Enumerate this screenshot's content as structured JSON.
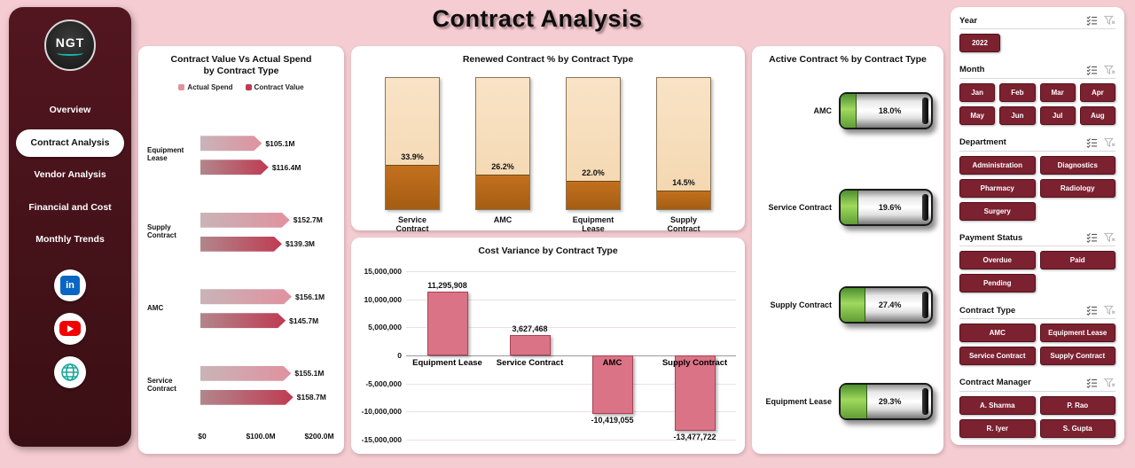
{
  "page": {
    "title": "Contract Analysis"
  },
  "sidebar": {
    "logo_text": "NGT",
    "items": [
      {
        "label": "Overview",
        "active": false
      },
      {
        "label": "Contract Analysis",
        "active": true
      },
      {
        "label": "Vendor Analysis",
        "active": false
      },
      {
        "label": "Financial and Cost",
        "active": false
      },
      {
        "label": "Monthly Trends",
        "active": false
      }
    ],
    "social": [
      "linkedin",
      "youtube",
      "website"
    ]
  },
  "colors": {
    "background": "#f5ccd2",
    "sidebar": "#47131a",
    "slicer_button": "#7b2130",
    "actual_spend": "#e0919f",
    "contract_value": "#bf3b52",
    "renewed_bar": "#f8ddb9",
    "renewed_fill": "#b2661c",
    "variance_bar": "#db7386",
    "gauge_fill": "#6fae3a"
  },
  "chart_data": [
    {
      "type": "bar",
      "orientation": "horizontal",
      "title": "Contract Value Vs Actual Spend by Contract Type",
      "categories": [
        "Equipment Lease",
        "Supply Contract",
        "AMC",
        "Service Contract"
      ],
      "series": [
        {
          "name": "Actual Spend",
          "values_millions": [
            105.1,
            152.7,
            156.1,
            155.1
          ],
          "labels": [
            "$105.1M",
            "$152.7M",
            "$156.1M",
            "$155.1M"
          ]
        },
        {
          "name": "Contract Value",
          "values_millions": [
            116.4,
            139.3,
            145.7,
            158.7
          ],
          "labels": [
            "$116.4M",
            "$139.3M",
            "$145.7M",
            "$158.7M"
          ]
        }
      ],
      "x_ticks": [
        "$0",
        "$100.0M",
        "$200.0M"
      ],
      "xlim_millions": [
        0,
        200
      ],
      "legend_position": "top"
    },
    {
      "type": "bar",
      "title": "Renewed Contract % by Contract Type",
      "categories": [
        "Service Contract",
        "AMC",
        "Equipment Lease",
        "Supply Contract"
      ],
      "values": [
        33.9,
        26.2,
        22.0,
        14.5
      ],
      "labels": [
        "33.9%",
        "26.2%",
        "22.0%",
        "14.5%"
      ],
      "ylim": [
        0,
        100
      ]
    },
    {
      "type": "bar",
      "title": "Cost Variance by Contract Type",
      "categories": [
        "Equipment Lease",
        "Service Contract",
        "AMC",
        "Supply Contract"
      ],
      "values": [
        11295908,
        3627468,
        -10419055,
        -13477722
      ],
      "labels": [
        "11,295,908",
        "3,627,468",
        "-10,419,055",
        "-13,477,722"
      ],
      "y_ticks": [
        "15,000,000",
        "10,000,000",
        "5,000,000",
        "0",
        "-5,000,000",
        "-10,000,000",
        "-15,000,000"
      ],
      "ylim": [
        -15000000,
        15000000
      ],
      "grid": true
    },
    {
      "type": "bar",
      "orientation": "horizontal",
      "title": "Active Contract % by Contract Type",
      "categories": [
        "AMC",
        "Service Contract",
        "Supply Contract",
        "Equipment Lease"
      ],
      "values": [
        18.0,
        19.6,
        27.4,
        29.3
      ],
      "labels": [
        "18.0%",
        "19.6%",
        "27.4%",
        "29.3%"
      ]
    }
  ],
  "slicer_icons": [
    "multiselect",
    "clear-filter"
  ],
  "filters": [
    {
      "label": "Year",
      "options": [
        "2022"
      ]
    },
    {
      "label": "Month",
      "options": [
        "Jan",
        "Feb",
        "Mar",
        "Apr",
        "May",
        "Jun",
        "Jul",
        "Aug"
      ]
    },
    {
      "label": "Department",
      "options": [
        "Administration",
        "Diagnostics",
        "Pharmacy",
        "Radiology",
        "Surgery"
      ]
    },
    {
      "label": "Payment Status",
      "options": [
        "Overdue",
        "Paid",
        "Pending"
      ]
    },
    {
      "label": "Contract Type",
      "options": [
        "AMC",
        "Equipment Lease",
        "Service Contract",
        "Supply Contract"
      ]
    },
    {
      "label": "Contract Manager",
      "options": [
        "A. Sharma",
        "P. Rao",
        "R. Iyer",
        "S. Gupta"
      ]
    }
  ]
}
